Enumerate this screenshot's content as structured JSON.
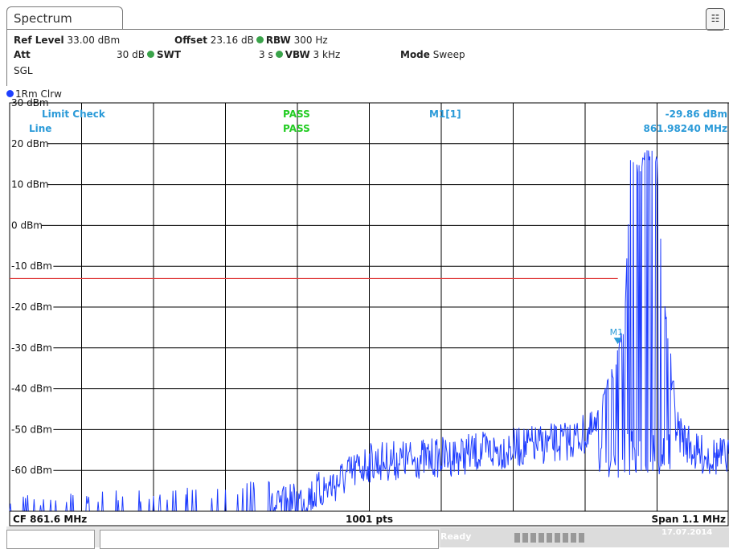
{
  "tab": {
    "label": "Spectrum"
  },
  "settings": {
    "ref_level_label": "Ref Level",
    "ref_level_value": "33.00 dBm",
    "offset_label": "Offset",
    "offset_value": "23.16 dB",
    "rbw_label": "RBW",
    "rbw_value": "300 Hz",
    "att_label": "Att",
    "att_value": "30 dB",
    "swt_label": "SWT",
    "swt_value": "3 s",
    "vbw_label": "VBW",
    "vbw_value": "3 kHz",
    "mode_label": "Mode",
    "mode_value": "Sweep",
    "sgl": "SGL"
  },
  "trace": {
    "label": "1Rm Clrw"
  },
  "limit": {
    "check_label": "Limit Check",
    "check_result": "PASS",
    "line_label": "Line",
    "line_result": "PASS"
  },
  "marker": {
    "name": "M1[1]",
    "level": "-29.86 dBm",
    "freq": "861.98240 MHz",
    "label": "M1"
  },
  "footer": {
    "cf": "CF 861.6 MHz",
    "pts": "1001 pts",
    "span": "Span 1.1 MHz"
  },
  "status": {
    "ready": "Ready",
    "date": "17.07.2014"
  },
  "colors": {
    "trace": "#1e3cff",
    "limit_line": "#e04040",
    "pass": "#22cc22",
    "label_blue": "#2a9ad8",
    "grid": "#000000"
  },
  "chart_data": {
    "type": "line",
    "title": "",
    "x_unit": "MHz",
    "center_mhz": 861.6,
    "span_mhz": 1.1,
    "points": 1001,
    "ylim": [
      -70,
      30
    ],
    "y_ticks": [
      {
        "value": 30,
        "label": "30 dBm"
      },
      {
        "value": 20,
        "label": "20 dBm"
      },
      {
        "value": 10,
        "label": "10 dBm"
      },
      {
        "value": 0,
        "label": "0 dBm"
      },
      {
        "value": -10,
        "label": "-10 dBm"
      },
      {
        "value": -20,
        "label": "-20 dBm"
      },
      {
        "value": -30,
        "label": "-30 dBm"
      },
      {
        "value": -40,
        "label": "-40 dBm"
      },
      {
        "value": -50,
        "label": "-50 dBm"
      },
      {
        "value": -60,
        "label": "-60 dBm"
      }
    ],
    "limit_line_dbm": -13,
    "marker": {
      "x_mhz": 861.9824,
      "y_dbm": -29.86
    },
    "trace_envelope": {
      "x_mhz": [
        861.05,
        861.2,
        861.35,
        861.45,
        861.5,
        861.55,
        861.6,
        861.7,
        861.8,
        861.85,
        861.9,
        861.95,
        861.98,
        861.99,
        862.0,
        862.01,
        862.02,
        862.03,
        862.04,
        862.05,
        862.07,
        862.1,
        862.15
      ],
      "peak_dbm": [
        -69,
        -68,
        -67,
        -65,
        -62,
        -58,
        -53,
        -52,
        -50,
        -49,
        -48,
        -45,
        -30,
        -22,
        19,
        15,
        18,
        20,
        17,
        -15,
        -45,
        -51,
        -52
      ]
    }
  }
}
